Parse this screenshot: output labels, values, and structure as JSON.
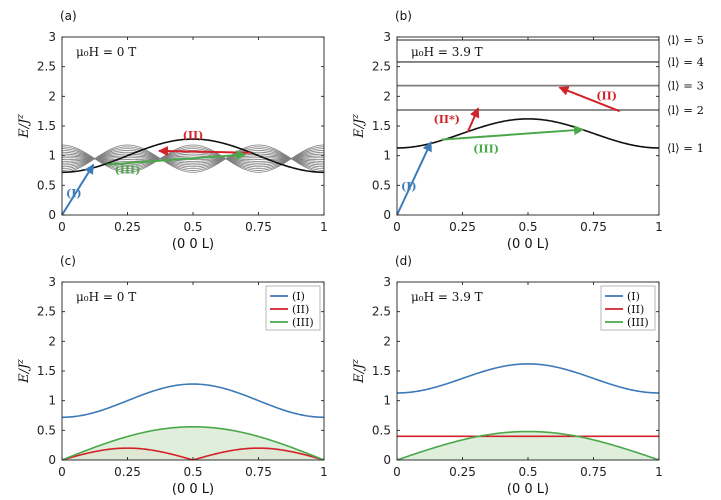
{
  "figure": {
    "colors": {
      "blue": "#3d7ab8",
      "red": "#d2232a",
      "green": "#4aa84a",
      "black": "#111111",
      "gray": "#7f7f7f",
      "green_fill": "#d9ecd5",
      "red_fill": "#f6c9cb"
    },
    "xlabel": "(0 0 L)",
    "ylabel_main": "E/J",
    "ylabel_sup": "z"
  },
  "chart_data": [
    {
      "id": "a",
      "panel_label": "(a)",
      "type": "line",
      "field_label": "μ₀H = 0 T",
      "xlabel": "(0 0 L)",
      "ylabel": "E/J^z",
      "xlim": [
        0,
        1
      ],
      "ylim": [
        0,
        3
      ],
      "xticks": [
        0,
        0.25,
        0.5,
        0.75,
        1
      ],
      "xtick_labels": [
        "0",
        "0.25",
        "0.5",
        "0.75",
        "1"
      ],
      "yticks": [
        0,
        0.5,
        1,
        1.5,
        2,
        2.5,
        3
      ],
      "ytick_labels": [
        "0",
        "0.5",
        "1",
        "1.5",
        "2",
        "2.5",
        "3"
      ],
      "series": [
        {
          "name": "lower band",
          "function": "cosine",
          "min": 0.72,
          "max": 1.28,
          "color": "black"
        },
        {
          "name": "continuum",
          "function": "cosine_band",
          "min_low": 0.72,
          "max_high": 1.18,
          "n_curves": 16,
          "crossing_points": [
            0.25,
            0.75
          ],
          "color": "gray"
        }
      ],
      "arrows": [
        {
          "label": "(I)",
          "from": [
            0,
            0
          ],
          "to": [
            0.12,
            0.85
          ],
          "color": "blue",
          "label_at": [
            0.045,
            0.3
          ]
        },
        {
          "label": "(II)",
          "from": [
            0.72,
            1.05
          ],
          "to": [
            0.37,
            1.08
          ],
          "color": "red",
          "label_at": [
            0.5,
            1.28
          ]
        },
        {
          "label": "(III)",
          "from": [
            0.17,
            0.85
          ],
          "to": [
            0.7,
            1.02
          ],
          "color": "green",
          "label_at": [
            0.25,
            0.7
          ]
        }
      ]
    },
    {
      "id": "b",
      "panel_label": "(b)",
      "type": "line",
      "field_label": "μ₀H = 3.9 T",
      "xlabel": "(0 0 L)",
      "ylabel": "E/J^z",
      "xlim": [
        0,
        1
      ],
      "ylim": [
        0,
        3
      ],
      "xticks": [
        0,
        0.25,
        0.5,
        0.75,
        1
      ],
      "xtick_labels": [
        "0",
        "0.25",
        "0.5",
        "0.75",
        "1"
      ],
      "yticks": [
        0,
        0.5,
        1,
        1.5,
        2,
        2.5,
        3
      ],
      "ytick_labels": [
        "0",
        "0.5",
        "1",
        "1.5",
        "2",
        "2.5",
        "3"
      ],
      "series": [
        {
          "name": "⟨l⟩ = 1",
          "function": "cosine",
          "min": 1.13,
          "max": 1.62,
          "color": "black"
        },
        {
          "name": "⟨l⟩ = 2",
          "function": "constant",
          "value": 1.77,
          "color": "gray"
        },
        {
          "name": "⟨l⟩ = 3",
          "function": "constant",
          "value": 2.18,
          "color": "gray"
        },
        {
          "name": "⟨l⟩ = 4",
          "function": "constant",
          "value": 2.58,
          "color": "gray"
        },
        {
          "name": "⟨l⟩ = 5",
          "function": "constant",
          "value": 2.95,
          "color": "gray"
        }
      ],
      "level_labels": [
        {
          "text": "⟨l⟩ = 5",
          "y": 2.95
        },
        {
          "text": "⟨l⟩ = 4",
          "y": 2.58
        },
        {
          "text": "⟨l⟩ = 3",
          "y": 2.18
        },
        {
          "text": "⟨l⟩ = 2",
          "y": 1.77
        },
        {
          "text": "⟨l⟩ = 1",
          "y": 1.13
        }
      ],
      "arrows": [
        {
          "label": "(I)",
          "from": [
            0,
            0
          ],
          "to": [
            0.13,
            1.23
          ],
          "color": "blue",
          "label_at": [
            0.045,
            0.42
          ]
        },
        {
          "label": "(II*)",
          "from": [
            0.27,
            1.4
          ],
          "to": [
            0.31,
            1.8
          ],
          "color": "red",
          "label_at": [
            0.19,
            1.55
          ]
        },
        {
          "label": "(II)",
          "from": [
            0.85,
            1.75
          ],
          "to": [
            0.62,
            2.15
          ],
          "color": "red",
          "label_at": [
            0.8,
            1.95
          ]
        },
        {
          "label": "(III)",
          "from": [
            0.17,
            1.27
          ],
          "to": [
            0.71,
            1.44
          ],
          "color": "green",
          "label_at": [
            0.34,
            1.05
          ]
        }
      ]
    },
    {
      "id": "c",
      "panel_label": "(c)",
      "type": "line",
      "field_label": "μ₀H = 0 T",
      "xlabel": "(0 0 L)",
      "ylabel": "E/J^z",
      "xlim": [
        0,
        1
      ],
      "ylim": [
        0,
        3
      ],
      "xticks": [
        0,
        0.25,
        0.5,
        0.75,
        1
      ],
      "xtick_labels": [
        "0",
        "0.25",
        "0.5",
        "0.75",
        "1"
      ],
      "yticks": [
        0,
        0.5,
        1,
        1.5,
        2,
        2.5,
        3
      ],
      "ytick_labels": [
        "0",
        "0.5",
        "1",
        "1.5",
        "2",
        "2.5",
        "3"
      ],
      "legend": [
        "(I)",
        "(II)",
        "(III)"
      ],
      "legend_position": "top-right",
      "series": [
        {
          "name": "(I)",
          "function": "cosine",
          "min": 0.72,
          "max": 1.28,
          "color": "blue",
          "fill": false
        },
        {
          "name": "(II)",
          "function": "double_arch",
          "max": 0.2,
          "zeros": [
            0,
            0.5,
            1
          ],
          "color": "red",
          "fill": true
        },
        {
          "name": "(III)",
          "function": "arch",
          "max": 0.56,
          "zeros": [
            0,
            1
          ],
          "color": "green",
          "fill": true
        }
      ]
    },
    {
      "id": "d",
      "panel_label": "(d)",
      "type": "line",
      "field_label": "μ₀H = 3.9 T",
      "xlabel": "(0 0 L)",
      "ylabel": "E/J^z",
      "xlim": [
        0,
        1
      ],
      "ylim": [
        0,
        3
      ],
      "xticks": [
        0,
        0.25,
        0.5,
        0.75,
        1
      ],
      "xtick_labels": [
        "0",
        "0.25",
        "0.5",
        "0.75",
        "1"
      ],
      "yticks": [
        0,
        0.5,
        1,
        1.5,
        2,
        2.5,
        3
      ],
      "ytick_labels": [
        "0",
        "0.5",
        "1",
        "1.5",
        "2",
        "2.5",
        "3"
      ],
      "legend": [
        "(I)",
        "(II)",
        "(III)"
      ],
      "legend_position": "top-right",
      "series": [
        {
          "name": "(I)",
          "function": "cosine",
          "min": 1.13,
          "max": 1.62,
          "color": "blue",
          "fill": false
        },
        {
          "name": "(II)",
          "function": "constant",
          "value": 0.4,
          "color": "red",
          "fill": false
        },
        {
          "name": "(III)",
          "function": "arch",
          "max": 0.48,
          "zeros": [
            0,
            1
          ],
          "color": "green",
          "fill": true
        }
      ]
    }
  ]
}
